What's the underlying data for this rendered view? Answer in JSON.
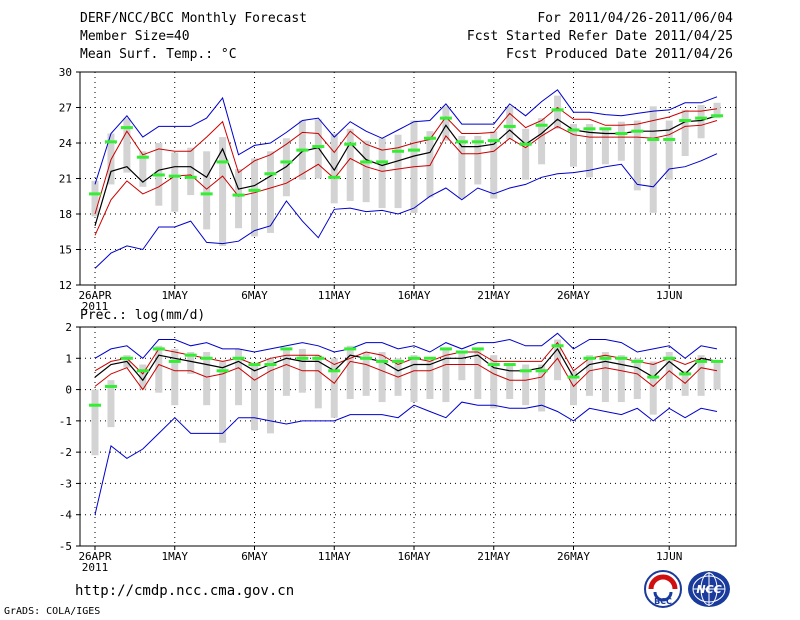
{
  "header": {
    "title": "DERF/NCC/BCC Monthly Forecast",
    "member_size": "Member Size=40",
    "period": "For 2011/04/26-2011/06/04",
    "started": "Fcst Started Refer Date 2011/04/25",
    "produced": "Fcst Produced Date 2011/04/26"
  },
  "footer": {
    "url": "http://cmdp.ncc.cma.gov.cn",
    "credit": "GrADS: COLA/IGES"
  },
  "logos": {
    "left": "BCC",
    "right": "NCC"
  },
  "colors": {
    "envelope": "#0000cc",
    "spread": "#cc0000",
    "mean": "#000000",
    "box": "#d3d3d3",
    "median": "#33ee33"
  },
  "chart_data": [
    {
      "type": "line",
      "title": "Mean Surf. Temp.: °C",
      "ylim": [
        12,
        30
      ],
      "yticks": [
        12,
        15,
        18,
        21,
        24,
        27,
        30
      ],
      "xtick_labels": [
        "26APR",
        "1MAY",
        "6MAY",
        "11MAY",
        "16MAY",
        "21MAY",
        "26MAY",
        "1JUN"
      ],
      "xtick_index": [
        0,
        5,
        10,
        15,
        20,
        25,
        30,
        36
      ],
      "year_label": "2011",
      "series": [
        {
          "name": "max",
          "values": [
            20.5,
            24.8,
            26.3,
            24.5,
            25.4,
            25.4,
            25.4,
            26.1,
            27.8,
            23.0,
            23.8,
            24.0,
            24.9,
            25.9,
            26.1,
            24.5,
            25.8,
            25.0,
            24.4,
            25.1,
            25.8,
            25.9,
            27.3,
            25.6,
            25.6,
            25.6,
            27.3,
            26.3,
            27.5,
            28.5,
            26.6,
            26.6,
            26.4,
            26.3,
            26.5,
            26.7,
            26.8,
            27.4,
            27.4,
            27.9
          ]
        },
        {
          "name": "upper",
          "values": [
            18.0,
            22.6,
            25.0,
            23.0,
            23.5,
            23.3,
            23.3,
            24.5,
            25.8,
            21.5,
            22.5,
            23.0,
            23.9,
            24.9,
            24.8,
            23.2,
            25.0,
            23.9,
            23.4,
            23.6,
            24.0,
            24.3,
            26.2,
            24.8,
            24.8,
            24.9,
            26.5,
            25.3,
            25.9,
            27.0,
            26.0,
            26.0,
            25.5,
            25.5,
            25.6,
            25.9,
            26.2,
            26.7,
            26.7,
            26.9
          ]
        },
        {
          "name": "mean",
          "values": [
            17.0,
            21.6,
            22.0,
            20.7,
            21.7,
            22.0,
            22.0,
            21.1,
            23.5,
            20.1,
            20.4,
            21.2,
            22.0,
            23.3,
            23.6,
            21.7,
            24.0,
            22.6,
            22.1,
            22.5,
            22.9,
            23.2,
            25.5,
            23.7,
            23.7,
            23.9,
            25.1,
            23.9,
            24.8,
            26.0,
            25.1,
            24.9,
            24.8,
            24.8,
            25.0,
            25.0,
            25.1,
            25.8,
            25.9,
            26.3
          ]
        },
        {
          "name": "lower",
          "values": [
            16.2,
            19.2,
            20.8,
            19.7,
            20.3,
            21.2,
            21.3,
            20.1,
            21.2,
            19.5,
            19.8,
            20.2,
            20.6,
            21.4,
            22.2,
            21.0,
            22.7,
            22.0,
            21.6,
            21.8,
            22.0,
            22.1,
            24.6,
            23.1,
            23.1,
            23.3,
            24.4,
            23.6,
            24.6,
            25.4,
            24.7,
            24.5,
            24.5,
            24.5,
            24.5,
            24.4,
            24.7,
            25.4,
            25.5,
            25.9
          ]
        },
        {
          "name": "min",
          "values": [
            13.4,
            14.7,
            15.3,
            15.0,
            16.9,
            16.9,
            17.4,
            15.6,
            15.5,
            15.7,
            16.6,
            17.0,
            19.1,
            17.4,
            16.0,
            18.4,
            18.5,
            18.2,
            18.3,
            18.0,
            18.5,
            19.5,
            20.2,
            19.2,
            20.2,
            19.7,
            20.2,
            20.5,
            21.1,
            21.4,
            21.5,
            21.7,
            22.0,
            22.2,
            20.5,
            20.3,
            21.8,
            22.0,
            22.5,
            23.1
          ]
        }
      ],
      "boxes": [
        [
          17.8,
          20.8
        ],
        [
          20.5,
          24.8
        ],
        [
          21.5,
          26.1
        ],
        [
          20.3,
          23.3
        ],
        [
          18.7,
          24.0
        ],
        [
          18.2,
          23.2
        ],
        [
          19.6,
          23.6
        ],
        [
          16.7,
          23.3
        ],
        [
          15.3,
          24.5
        ],
        [
          16.8,
          21.8
        ],
        [
          16.1,
          22.7
        ],
        [
          16.4,
          23.3
        ],
        [
          19.5,
          24.4
        ],
        [
          20.9,
          25.9
        ],
        [
          21.0,
          26.0
        ],
        [
          18.9,
          24.8
        ],
        [
          19.1,
          25.2
        ],
        [
          19.0,
          24.2
        ],
        [
          18.5,
          24.4
        ],
        [
          18.5,
          24.7
        ],
        [
          18.1,
          25.9
        ],
        [
          19.4,
          25.0
        ],
        [
          24.2,
          27.1
        ],
        [
          19.3,
          24.6
        ],
        [
          20.5,
          24.6
        ],
        [
          19.3,
          25.0
        ],
        [
          24.3,
          27.1
        ],
        [
          20.9,
          25.2
        ],
        [
          22.2,
          26.1
        ],
        [
          25.2,
          28.0
        ],
        [
          22.0,
          25.6
        ],
        [
          21.1,
          25.6
        ],
        [
          22.2,
          25.3
        ],
        [
          22.5,
          25.8
        ],
        [
          20.0,
          25.9
        ],
        [
          18.1,
          27.1
        ],
        [
          20.9,
          25.9
        ],
        [
          22.9,
          26.8
        ],
        [
          24.4,
          27.2
        ],
        [
          26.1,
          27.4
        ]
      ],
      "medians": [
        19.7,
        24.1,
        25.3,
        22.8,
        21.3,
        21.2,
        21.1,
        19.7,
        22.4,
        19.6,
        20.0,
        21.4,
        22.4,
        23.4,
        23.7,
        21.1,
        23.9,
        22.4,
        22.4,
        23.3,
        23.4,
        24.4,
        26.1,
        24.1,
        24.1,
        24.2,
        25.4,
        23.9,
        25.5,
        26.8,
        25.1,
        25.2,
        25.2,
        24.8,
        25.0,
        24.3,
        24.3,
        25.9,
        26.1,
        26.3
      ]
    },
    {
      "type": "line",
      "title": "Prec.: log(mm/d)",
      "ylim": [
        -5,
        2
      ],
      "yticks": [
        -5,
        -4,
        -3,
        -2,
        -1,
        0,
        1,
        2
      ],
      "xtick_labels": [
        "26APR",
        "1MAY",
        "6MAY",
        "11MAY",
        "16MAY",
        "21MAY",
        "26MAY",
        "1JUN"
      ],
      "xtick_index": [
        0,
        5,
        10,
        15,
        20,
        25,
        30,
        36
      ],
      "year_label": "2011",
      "series": [
        {
          "name": "max",
          "values": [
            1.0,
            1.3,
            1.4,
            1.0,
            1.6,
            1.6,
            1.4,
            1.5,
            1.3,
            1.3,
            1.2,
            1.3,
            1.4,
            1.5,
            1.4,
            1.2,
            1.3,
            1.5,
            1.5,
            1.3,
            1.4,
            1.2,
            1.5,
            1.3,
            1.5,
            1.5,
            1.6,
            1.4,
            1.4,
            1.8,
            1.3,
            1.6,
            1.6,
            1.5,
            1.2,
            1.3,
            1.4,
            1.0,
            1.4,
            1.3
          ]
        },
        {
          "name": "upper",
          "values": [
            0.6,
            0.9,
            1.0,
            0.5,
            1.3,
            1.2,
            1.1,
            1.0,
            0.9,
            1.0,
            0.8,
            1.0,
            1.1,
            1.1,
            1.1,
            0.8,
            1.0,
            1.2,
            1.1,
            0.8,
            1.0,
            0.9,
            1.1,
            1.2,
            1.2,
            0.9,
            0.9,
            0.9,
            0.9,
            1.5,
            0.6,
            1.0,
            1.1,
            1.0,
            0.9,
            0.8,
            1.0,
            0.8,
            1.0,
            0.9
          ]
        },
        {
          "name": "mean",
          "values": [
            0.4,
            0.8,
            0.9,
            0.3,
            1.1,
            1.0,
            0.9,
            0.8,
            0.7,
            0.9,
            0.6,
            0.8,
            1.0,
            0.9,
            0.9,
            0.6,
            1.1,
            1.0,
            0.9,
            0.6,
            0.8,
            0.8,
            1.0,
            1.0,
            1.1,
            0.7,
            0.6,
            0.6,
            0.7,
            1.3,
            0.4,
            0.8,
            0.9,
            0.8,
            0.7,
            0.4,
            0.9,
            0.5,
            1.0,
            0.9
          ]
        },
        {
          "name": "lower",
          "values": [
            0.1,
            0.5,
            0.7,
            0.0,
            0.8,
            0.6,
            0.6,
            0.4,
            0.5,
            0.7,
            0.3,
            0.6,
            0.8,
            0.6,
            0.6,
            0.2,
            0.9,
            0.8,
            0.6,
            0.4,
            0.6,
            0.6,
            0.8,
            0.8,
            0.8,
            0.5,
            0.3,
            0.3,
            0.4,
            1.0,
            0.1,
            0.6,
            0.7,
            0.6,
            0.5,
            0.1,
            0.6,
            0.2,
            0.7,
            0.6
          ]
        },
        {
          "name": "min",
          "values": [
            -4.0,
            -1.8,
            -2.2,
            -1.9,
            -1.4,
            -0.9,
            -1.4,
            -1.4,
            -1.4,
            -0.9,
            -0.9,
            -1.0,
            -1.1,
            -1.0,
            -1.0,
            -1.0,
            -0.8,
            -0.8,
            -0.8,
            -0.9,
            -0.5,
            -0.7,
            -0.9,
            -0.4,
            -0.5,
            -0.5,
            -0.6,
            -0.6,
            -0.5,
            -0.7,
            -1.0,
            -0.6,
            -0.7,
            -0.8,
            -0.6,
            -1.0,
            -0.6,
            -0.9,
            -0.6,
            -0.7
          ]
        }
      ],
      "boxes": [
        [
          -2.1,
          0.0
        ],
        [
          -1.2,
          0.3
        ],
        [
          0.7,
          1.1
        ],
        [
          0.0,
          0.8
        ],
        [
          -0.1,
          1.4
        ],
        [
          -0.5,
          1.3
        ],
        [
          0.5,
          1.2
        ],
        [
          -0.5,
          1.2
        ],
        [
          -1.7,
          0.9
        ],
        [
          -0.5,
          1.3
        ],
        [
          -1.3,
          0.8
        ],
        [
          -1.4,
          1.0
        ],
        [
          -0.2,
          1.3
        ],
        [
          -0.1,
          1.3
        ],
        [
          -0.6,
          1.1
        ],
        [
          -0.9,
          1.0
        ],
        [
          -0.3,
          1.4
        ],
        [
          -0.2,
          1.2
        ],
        [
          -0.4,
          1.2
        ],
        [
          -0.2,
          1.0
        ],
        [
          -0.4,
          1.1
        ],
        [
          -0.3,
          0.9
        ],
        [
          -0.4,
          1.3
        ],
        [
          0.3,
          1.2
        ],
        [
          -0.3,
          1.3
        ],
        [
          -0.6,
          1.1
        ],
        [
          -0.3,
          0.8
        ],
        [
          -0.5,
          0.8
        ],
        [
          -0.7,
          0.8
        ],
        [
          0.3,
          1.6
        ],
        [
          -0.5,
          0.6
        ],
        [
          -0.2,
          1.1
        ],
        [
          -0.4,
          1.2
        ],
        [
          -0.4,
          1.1
        ],
        [
          -0.3,
          1.0
        ],
        [
          -0.8,
          0.9
        ],
        [
          0.0,
          1.2
        ],
        [
          -0.2,
          0.6
        ],
        [
          -0.2,
          1.1
        ],
        [
          0.0,
          0.9
        ]
      ],
      "medians": [
        -0.5,
        0.1,
        1.0,
        0.6,
        1.3,
        0.9,
        1.1,
        1.0,
        0.6,
        1.0,
        0.8,
        0.8,
        1.3,
        1.0,
        1.0,
        0.6,
        1.3,
        1.0,
        0.9,
        0.9,
        1.0,
        1.0,
        1.3,
        1.2,
        1.3,
        0.8,
        0.8,
        0.6,
        0.6,
        1.4,
        0.4,
        1.0,
        1.0,
        1.0,
        0.9,
        0.4,
        1.0,
        0.5,
        0.9,
        0.9
      ]
    }
  ]
}
